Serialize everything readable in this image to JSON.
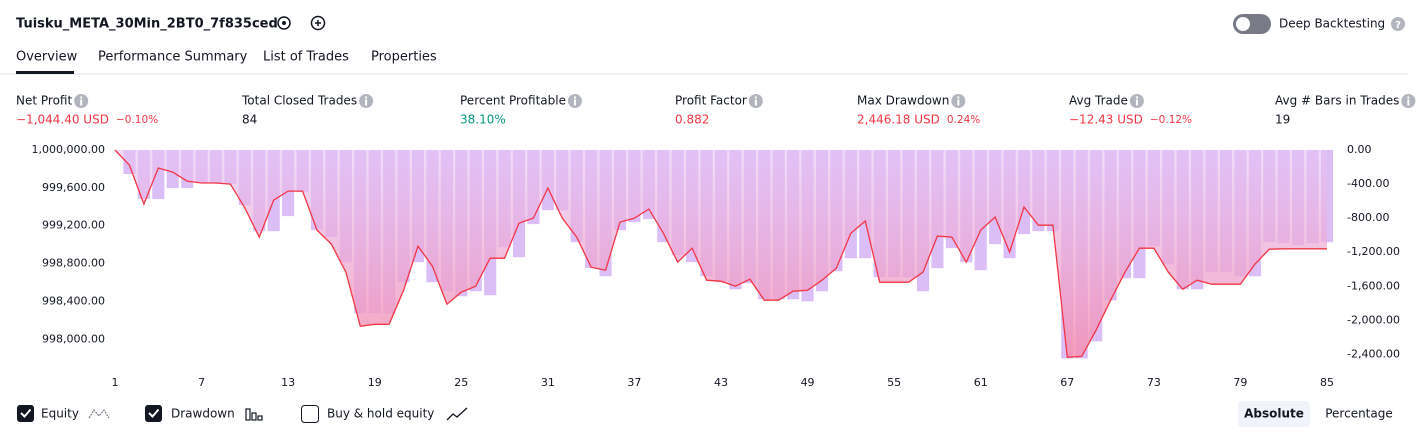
{
  "header": {
    "title": "Tuisku_META_30Min_2BT0_7f835ced",
    "deep_backtesting": "Deep Backtesting",
    "tabs": [
      "Overview",
      "Performance Summary",
      "List of Trades",
      "Properties"
    ]
  },
  "stats": [
    {
      "label": "Net Profit",
      "value": "−1,044.40 USD",
      "extra": "−0.10%",
      "color": "#f23645"
    },
    {
      "label": "Total Closed Trades",
      "value": "84",
      "color": "#131722"
    },
    {
      "label": "Percent Profitable",
      "value": "38.10%",
      "color": "#089981"
    },
    {
      "label": "Profit Factor",
      "value": "0.882",
      "color": "#f23645"
    },
    {
      "label": "Max Drawdown",
      "value": "2,446.18 USD",
      "extra": "0.24%",
      "color": "#f23645"
    },
    {
      "label": "Avg Trade",
      "value": "−12.43 USD",
      "extra": "−0.12%",
      "color": "#f23645"
    },
    {
      "label": "Avg # Bars in Trades",
      "value": "19",
      "color": "#131722"
    }
  ],
  "chart_data": {
    "type": "line+bar",
    "x": [
      1,
      2,
      3,
      4,
      5,
      6,
      7,
      8,
      9,
      10,
      11,
      12,
      13,
      14,
      15,
      16,
      17,
      18,
      19,
      20,
      21,
      22,
      23,
      24,
      25,
      26,
      27,
      28,
      29,
      30,
      31,
      32,
      33,
      34,
      35,
      36,
      37,
      38,
      39,
      40,
      41,
      42,
      43,
      44,
      45,
      46,
      47,
      48,
      49,
      50,
      51,
      52,
      53,
      54,
      55,
      56,
      57,
      58,
      59,
      60,
      61,
      62,
      63,
      64,
      65,
      66,
      67,
      68,
      69,
      70,
      71,
      72,
      73,
      74,
      75,
      76,
      77,
      78,
      79,
      80,
      81,
      82,
      83,
      84,
      85
    ],
    "xlim": [
      1,
      85
    ],
    "xticks": [
      1,
      7,
      13,
      19,
      25,
      31,
      37,
      43,
      49,
      55,
      61,
      67,
      73,
      79,
      85
    ],
    "ylim": [
      997750,
      1000000
    ],
    "yticks": [
      {
        "value": 1000000,
        "label": "1,000,000.00"
      },
      {
        "value": 999600,
        "label": "999,600.00"
      },
      {
        "value": 999200,
        "label": "999,200.00"
      },
      {
        "value": 998800,
        "label": "998,800.00"
      },
      {
        "value": 998400,
        "label": "998,400.00"
      },
      {
        "value": 998000,
        "label": "998,000.00"
      }
    ],
    "y2lim": [
      -2500,
      0
    ],
    "y2ticks": [
      {
        "value": 0,
        "label": "0.00"
      },
      {
        "value": -400,
        "label": "-400.00"
      },
      {
        "value": -800,
        "label": "-800.00"
      },
      {
        "value": -1200,
        "label": "-1,200.00"
      },
      {
        "value": -1600,
        "label": "-1,600.00"
      },
      {
        "value": -2000,
        "label": "-2,000.00"
      },
      {
        "value": -2400,
        "label": "-2,400.00"
      }
    ],
    "grid": false,
    "series": [
      {
        "name": "Equity",
        "type": "line",
        "axis": "y",
        "color": "#f23645",
        "area_color": "#f48fb1",
        "values": [
          1000000,
          999841,
          999429,
          999810,
          999767,
          999672,
          999651,
          999651,
          999640,
          999386,
          999080,
          999471,
          999566,
          999566,
          999154,
          999005,
          998709,
          998138,
          998159,
          998159,
          998518,
          998984,
          998773,
          998371,
          998498,
          998561,
          998857,
          998857,
          999228,
          999281,
          999598,
          999281,
          999080,
          998762,
          998730,
          999238,
          999281,
          999376,
          999122,
          998815,
          998963,
          998625,
          998614,
          998561,
          998635,
          998413,
          998413,
          998508,
          998518,
          998625,
          998752,
          999122,
          999249,
          998603,
          998603,
          998603,
          998709,
          999091,
          999080,
          998815,
          999154,
          999291,
          998921,
          999397,
          999206,
          999206,
          997810,
          997820,
          998096,
          998413,
          998709,
          998963,
          998963,
          998709,
          998529,
          998625,
          998582,
          998582,
          998582,
          998794,
          998952,
          998956,
          998956,
          998956,
          998956
        ]
      },
      {
        "name": "Drawdown",
        "type": "bar",
        "axis": "y2",
        "color": "#dcbef7",
        "values": [
          0,
          -282,
          -576,
          -576,
          -447,
          -447,
          -388,
          -388,
          -400,
          -647,
          -953,
          -953,
          -776,
          -494,
          -941,
          -1023,
          -1317,
          -1917,
          -1917,
          -1917,
          -1552,
          -1317,
          -1552,
          -1658,
          -1717,
          -1658,
          -1705,
          -1141,
          -1258,
          -870,
          -706,
          -706,
          -1082,
          -1387,
          -1482,
          -941,
          -847,
          -811,
          -1082,
          -1235,
          -1317,
          -1482,
          -1552,
          -1635,
          -1564,
          -1752,
          -1752,
          -1752,
          -1776,
          -1658,
          -1423,
          -1270,
          -1270,
          -1493,
          -1493,
          -1493,
          -1658,
          -1387,
          -1152,
          -1317,
          -1411,
          -1105,
          -1270,
          -988,
          -953,
          -953,
          -2446,
          -2446,
          -2246,
          -1764,
          -1505,
          -1505,
          -1129,
          -1341,
          -1635,
          -1635,
          -1435,
          -1435,
          -1482,
          -1482,
          -1082,
          -1094,
          -1117,
          -1094,
          -1082
        ]
      }
    ]
  },
  "controls": {
    "buy_hold": "Buy & hold equity",
    "absolute": "Absolute",
    "percentage": "Percentage"
  }
}
